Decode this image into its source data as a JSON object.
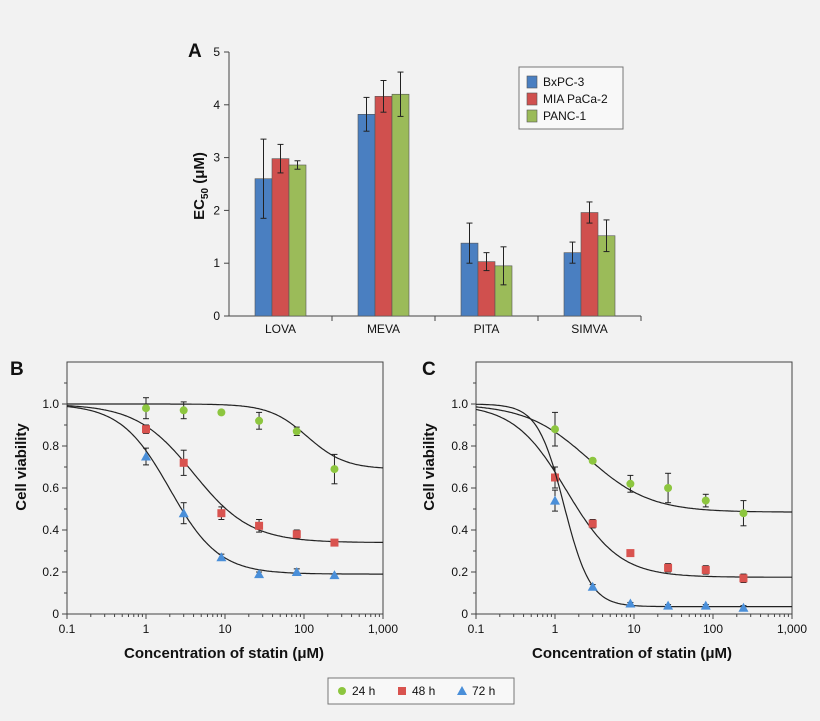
{
  "figure": {
    "legend_curves": [
      {
        "label": "24 h",
        "color": "#8dc63f",
        "marker": "circle"
      },
      {
        "label": "48 h",
        "color": "#d9534f",
        "marker": "square"
      },
      {
        "label": "72 h",
        "color": "#4a8fd9",
        "marker": "triangle"
      }
    ]
  },
  "chart_data": [
    {
      "panel": "A",
      "type": "bar",
      "title": "",
      "xlabel": "",
      "ylabel": "EC50 (μM)",
      "ylabel_main": "EC",
      "ylabel_sub": "50",
      "ylabel_rest": " (μM)",
      "ylim": [
        0,
        5
      ],
      "yticks": [
        "0",
        "1",
        "2",
        "3",
        "4",
        "5"
      ],
      "categories": [
        "LOVA",
        "MEVA",
        "PITA",
        "SIMVA"
      ],
      "series": [
        {
          "name": "BxPC-3",
          "color": "#4a7fc1",
          "values": [
            2.6,
            3.82,
            1.38,
            1.2
          ],
          "errors": [
            0.75,
            0.32,
            0.38,
            0.2
          ]
        },
        {
          "name": "MIA PaCa-2",
          "color": "#d0504e",
          "values": [
            2.98,
            4.16,
            1.03,
            1.96
          ],
          "errors": [
            0.27,
            0.3,
            0.17,
            0.2
          ]
        },
        {
          "name": "PANC-1",
          "color": "#9bbb59",
          "values": [
            2.86,
            4.2,
            0.95,
            1.52
          ],
          "errors": [
            0.08,
            0.42,
            0.36,
            0.3
          ]
        }
      ],
      "legend_position": "top-right"
    },
    {
      "panel": "B",
      "type": "scatter",
      "title": "",
      "xlabel": "Concentration of statin (μM)",
      "ylabel": "Cell viability",
      "xscale": "log",
      "xlim": [
        0.1,
        1000
      ],
      "ylim": [
        0,
        1.2
      ],
      "xticks": [
        "0.1",
        "1",
        "10",
        "100",
        "1,000"
      ],
      "yticks": [
        "0",
        "0.2",
        "0.4",
        "0.6",
        "0.8",
        "1.0"
      ],
      "series": [
        {
          "name": "24 h",
          "color": "#8dc63f",
          "marker": "circle",
          "x": [
            1,
            3,
            9,
            27,
            81,
            243
          ],
          "y": [
            0.98,
            0.97,
            0.96,
            0.92,
            0.87,
            0.69
          ],
          "err": [
            0.05,
            0.04,
            0.01,
            0.04,
            0.02,
            0.07
          ],
          "fit": {
            "top": 1.0,
            "bottom": 0.69,
            "ec50": 110,
            "hill": 1.8
          }
        },
        {
          "name": "48 h",
          "color": "#d9534f",
          "marker": "square",
          "x": [
            1,
            3,
            9,
            27,
            81,
            243
          ],
          "y": [
            0.88,
            0.72,
            0.48,
            0.42,
            0.38,
            0.34
          ],
          "err": [
            0.02,
            0.06,
            0.03,
            0.03,
            0.02,
            0.005
          ],
          "fit": {
            "top": 1.0,
            "bottom": 0.34,
            "ec50": 4.0,
            "hill": 1.2
          }
        },
        {
          "name": "72 h",
          "color": "#4a8fd9",
          "marker": "triangle",
          "x": [
            1,
            3,
            9,
            27,
            81,
            243
          ],
          "y": [
            0.75,
            0.48,
            0.27,
            0.19,
            0.2,
            0.185
          ],
          "err": [
            0.04,
            0.05,
            0.015,
            0.01,
            0.015,
            0.005
          ],
          "fit": {
            "top": 1.0,
            "bottom": 0.19,
            "ec50": 2.0,
            "hill": 1.4
          }
        }
      ]
    },
    {
      "panel": "C",
      "type": "scatter",
      "title": "",
      "xlabel": "Concentration of statin (μM)",
      "ylabel": "Cell viability",
      "xscale": "log",
      "xlim": [
        0.1,
        1000
      ],
      "ylim": [
        0,
        1.2
      ],
      "xticks": [
        "0.1",
        "1",
        "10",
        "100",
        "1,000"
      ],
      "yticks": [
        "0",
        "0.2",
        "0.4",
        "0.6",
        "0.8",
        "1.0"
      ],
      "series": [
        {
          "name": "24 h",
          "color": "#8dc63f",
          "marker": "circle",
          "x": [
            1,
            3,
            9,
            27,
            81,
            243
          ],
          "y": [
            0.88,
            0.73,
            0.62,
            0.6,
            0.54,
            0.48
          ],
          "err": [
            0.08,
            0.01,
            0.04,
            0.07,
            0.03,
            0.06
          ],
          "fit": {
            "top": 1.0,
            "bottom": 0.485,
            "ec50": 2.6,
            "hill": 1.1
          }
        },
        {
          "name": "48 h",
          "color": "#d9534f",
          "marker": "square",
          "x": [
            1,
            3,
            9,
            27,
            81,
            243
          ],
          "y": [
            0.65,
            0.43,
            0.29,
            0.22,
            0.21,
            0.17
          ],
          "err": [
            0.05,
            0.02,
            0.01,
            0.02,
            0.02,
            0.02
          ],
          "fit": {
            "top": 1.0,
            "bottom": 0.175,
            "ec50": 1.4,
            "hill": 1.3
          }
        },
        {
          "name": "72 h",
          "color": "#4a8fd9",
          "marker": "triangle",
          "x": [
            1,
            3,
            9,
            27,
            81,
            243
          ],
          "y": [
            0.54,
            0.13,
            0.05,
            0.04,
            0.04,
            0.03
          ],
          "err": [
            0.05,
            0.01,
            0.005,
            0.005,
            0.005,
            0.01
          ],
          "fit": {
            "top": 1.0,
            "bottom": 0.035,
            "ec50": 1.3,
            "hill": 2.6
          }
        }
      ]
    }
  ]
}
